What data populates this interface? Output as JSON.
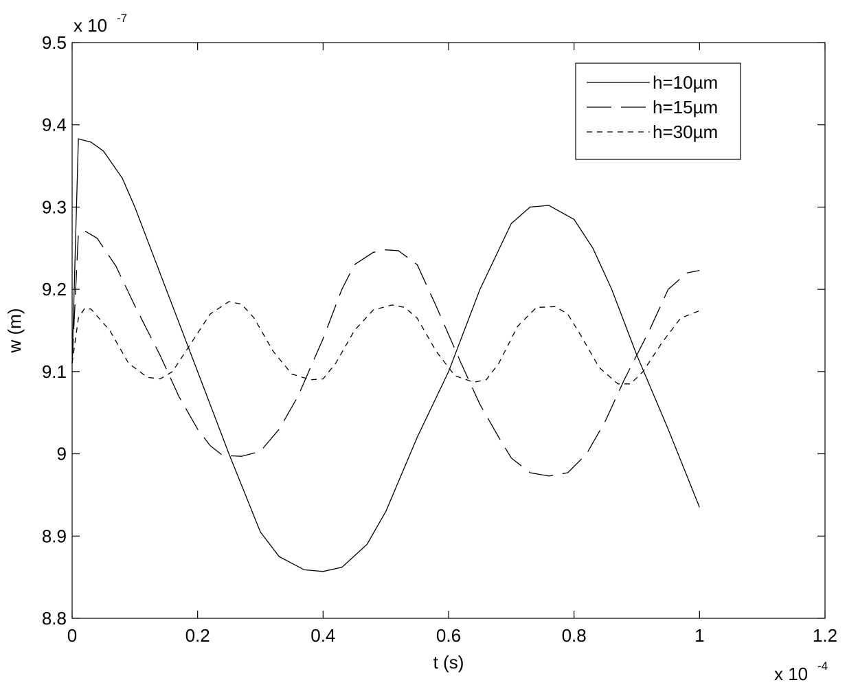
{
  "chart_data": {
    "type": "line",
    "xlabel": "t (s)",
    "ylabel": "w (m)",
    "x_multiplier": {
      "base": "x 10",
      "exponent": "-4"
    },
    "y_multiplier": {
      "base": "x 10",
      "exponent": "-7"
    },
    "xlim": [
      0,
      1.2
    ],
    "ylim": [
      8.8,
      9.5
    ],
    "xticks": [
      0,
      0.2,
      0.4,
      0.6,
      0.8,
      1,
      1.2
    ],
    "xtick_labels": [
      "0",
      "0.2",
      "0.4",
      "0.6",
      "0.8",
      "1",
      "1.2"
    ],
    "yticks": [
      8.8,
      8.9,
      9.0,
      9.1,
      9.2,
      9.3,
      9.4,
      9.5
    ],
    "ytick_labels": [
      "8.8",
      "8.9",
      "9",
      "9.1",
      "9.2",
      "9.3",
      "9.4",
      "9.5"
    ],
    "grid": false,
    "legend_position": "top-right",
    "series": [
      {
        "name": "h=10µm",
        "style": "solid",
        "x": [
          0,
          0.01,
          0.03,
          0.05,
          0.08,
          0.1,
          0.13,
          0.16,
          0.2,
          0.25,
          0.3,
          0.33,
          0.37,
          0.4,
          0.43,
          0.47,
          0.5,
          0.55,
          0.6,
          0.65,
          0.7,
          0.73,
          0.76,
          0.8,
          0.83,
          0.86,
          0.9,
          0.95,
          1.0
        ],
        "y": [
          9.11,
          9.383,
          9.379,
          9.368,
          9.335,
          9.3,
          9.24,
          9.18,
          9.1,
          9.0,
          8.905,
          8.875,
          8.859,
          8.857,
          8.862,
          8.89,
          8.93,
          9.02,
          9.1,
          9.2,
          9.28,
          9.3,
          9.302,
          9.285,
          9.25,
          9.2,
          9.12,
          9.03,
          8.935
        ]
      },
      {
        "name": "h=15µm",
        "style": "dash",
        "x": [
          0,
          0.01,
          0.02,
          0.04,
          0.07,
          0.1,
          0.14,
          0.17,
          0.2,
          0.22,
          0.24,
          0.27,
          0.3,
          0.33,
          0.36,
          0.4,
          0.43,
          0.45,
          0.48,
          0.5,
          0.52,
          0.55,
          0.58,
          0.62,
          0.65,
          0.68,
          0.7,
          0.73,
          0.76,
          0.79,
          0.82,
          0.85,
          0.88,
          0.92,
          0.95,
          0.98,
          1.0
        ],
        "y": [
          9.11,
          9.268,
          9.271,
          9.262,
          9.228,
          9.18,
          9.12,
          9.07,
          9.03,
          9.01,
          8.998,
          8.997,
          9.003,
          9.03,
          9.07,
          9.14,
          9.2,
          9.23,
          9.245,
          9.248,
          9.247,
          9.23,
          9.18,
          9.11,
          9.06,
          9.02,
          8.995,
          8.977,
          8.973,
          8.977,
          9.0,
          9.04,
          9.09,
          9.15,
          9.2,
          9.22,
          9.223
        ]
      },
      {
        "name": "h=30µm",
        "style": "dot",
        "x": [
          0,
          0.01,
          0.02,
          0.03,
          0.06,
          0.09,
          0.12,
          0.14,
          0.16,
          0.19,
          0.22,
          0.25,
          0.27,
          0.29,
          0.32,
          0.35,
          0.38,
          0.4,
          0.42,
          0.45,
          0.48,
          0.51,
          0.53,
          0.55,
          0.58,
          0.61,
          0.64,
          0.66,
          0.68,
          0.71,
          0.74,
          0.77,
          0.79,
          0.81,
          0.84,
          0.87,
          0.89,
          0.91,
          0.94,
          0.97,
          1.0
        ],
        "y": [
          9.11,
          9.165,
          9.177,
          9.176,
          9.15,
          9.11,
          9.093,
          9.091,
          9.1,
          9.135,
          9.17,
          9.185,
          9.182,
          9.165,
          9.125,
          9.097,
          9.09,
          9.091,
          9.11,
          9.15,
          9.175,
          9.181,
          9.178,
          9.165,
          9.125,
          9.095,
          9.087,
          9.09,
          9.11,
          9.155,
          9.178,
          9.179,
          9.17,
          9.145,
          9.105,
          9.085,
          9.085,
          9.1,
          9.135,
          9.165,
          9.174
        ]
      }
    ]
  }
}
